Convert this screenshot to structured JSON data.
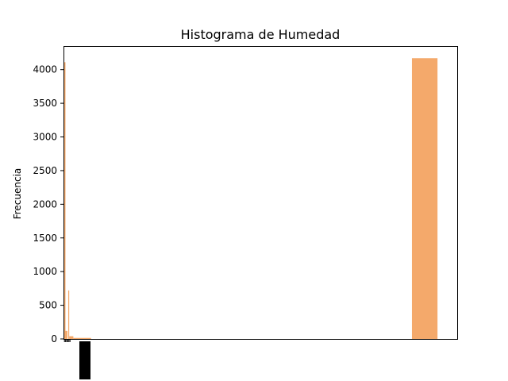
{
  "chart_data": {
    "type": "bar",
    "title": "Histograma de Humedad",
    "xlabel": "",
    "ylabel": "Frecuencia",
    "ylim": [
      0,
      4350
    ],
    "yticks": [
      0,
      500,
      1000,
      1500,
      2000,
      2500,
      3000,
      3500,
      4000
    ],
    "xlim": [
      0,
      100
    ],
    "grid": false,
    "bar_color": "#F4A96B",
    "bins": [
      {
        "x0": 0.0,
        "x1": 0.5,
        "value": 4110
      },
      {
        "x0": 0.5,
        "x1": 1.0,
        "value": 120
      },
      {
        "x0": 1.2,
        "x1": 1.45,
        "value": 720
      },
      {
        "x0": 1.45,
        "x1": 2.5,
        "value": 40
      },
      {
        "x0": 2.5,
        "x1": 7.0,
        "value": 15
      },
      {
        "x0": 88.5,
        "x1": 95.0,
        "value": 4170
      }
    ]
  }
}
